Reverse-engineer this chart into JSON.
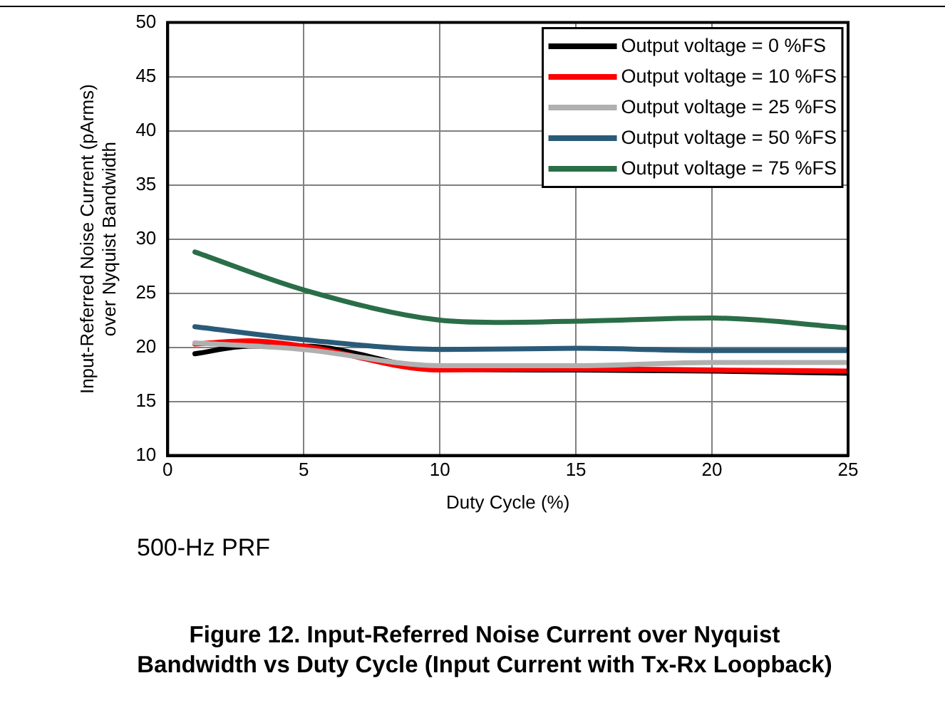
{
  "chart_data": {
    "type": "line",
    "title": "Figure 12. Input-Referred Noise Current over Nyquist Bandwidth vs Duty Cycle (Input Current with Tx-Rx Loopback)",
    "xlabel": "Duty Cycle (%)",
    "ylabel": "Input-Referred Noise Current (pArms)\nover Nyquist Bandwidth",
    "annotations": [
      "500-Hz PRF"
    ],
    "xlim": [
      0,
      25
    ],
    "xticks": [
      0,
      5,
      10,
      15,
      20,
      25
    ],
    "ylim": [
      10,
      50
    ],
    "yticks": [
      10,
      15,
      20,
      25,
      30,
      35,
      40,
      45,
      50
    ],
    "grid": true,
    "legend": "top right",
    "marker": "none",
    "line_style": "solid",
    "series": [
      {
        "name": "Output voltage = 0 %FS",
        "color": "#000000",
        "x": [
          1,
          3,
          5,
          10,
          15,
          20,
          25
        ],
        "values": [
          19.4,
          20.1,
          20.1,
          18.0,
          17.9,
          17.8,
          17.6
        ]
      },
      {
        "name": "Output voltage = 10 %FS",
        "color": "#ff0000",
        "x": [
          1,
          3,
          5,
          10,
          15,
          20,
          25
        ],
        "values": [
          20.3,
          20.6,
          20.1,
          17.9,
          18.0,
          17.9,
          17.8
        ]
      },
      {
        "name": "Output voltage = 25 %FS",
        "color": "#b0b0b0",
        "x": [
          1,
          5,
          10,
          15,
          20,
          25
        ],
        "values": [
          20.4,
          19.8,
          18.3,
          18.3,
          18.6,
          18.6
        ]
      },
      {
        "name": "Output voltage = 50 %FS",
        "color": "#2a5a78",
        "x": [
          1,
          5,
          10,
          15,
          20,
          25
        ],
        "values": [
          21.9,
          20.7,
          19.8,
          19.9,
          19.7,
          19.7
        ]
      },
      {
        "name": "Output voltage = 75 %FS",
        "color": "#2a6e48",
        "x": [
          1,
          5,
          10,
          12,
          15,
          20,
          25
        ],
        "values": [
          28.8,
          25.3,
          22.5,
          22.3,
          22.4,
          22.7,
          21.8
        ]
      }
    ]
  }
}
